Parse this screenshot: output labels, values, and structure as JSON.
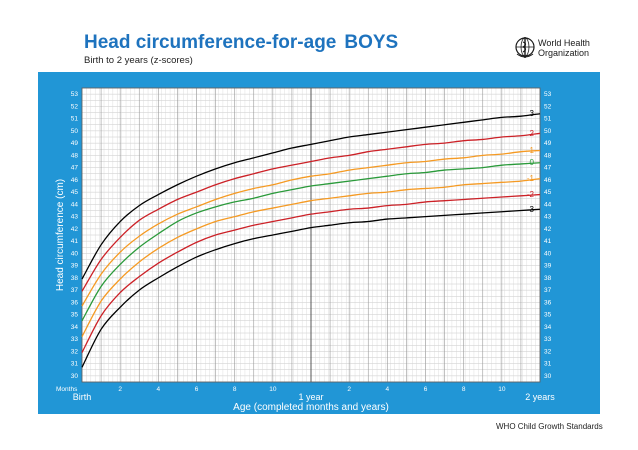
{
  "header": {
    "title": "Head circumference-for-age",
    "title_sex": "BOYS",
    "subtitle": "Birth to 2 years (z-scores)",
    "org_name_line1": "World Health",
    "org_name_line2": "Organization"
  },
  "footer": "WHO Child Growth Standards",
  "colors": {
    "panel": "#2196d6",
    "title": "#1e73be",
    "z_pm3": "#000000",
    "z_pm2": "#cc2127",
    "z_pm1": "#f59a23",
    "z_0": "#2a9a3a"
  },
  "chart_data": {
    "type": "line",
    "title": "Head circumference-for-age BOYS",
    "subtitle": "Birth to 2 years (z-scores)",
    "xlabel": "Age (completed months and years)",
    "ylabel": "Head circumference (cm)",
    "x_unit_label": "Months",
    "x_milestones": [
      {
        "month": 0,
        "label": "Birth"
      },
      {
        "month": 12,
        "label": "1 year"
      },
      {
        "month": 24,
        "label": "2 years"
      }
    ],
    "x_ticks": [
      {
        "month": 2,
        "label": "2"
      },
      {
        "month": 4,
        "label": "4"
      },
      {
        "month": 6,
        "label": "6"
      },
      {
        "month": 8,
        "label": "8"
      },
      {
        "month": 10,
        "label": "10"
      },
      {
        "month": 14,
        "label": "2"
      },
      {
        "month": 16,
        "label": "4"
      },
      {
        "month": 18,
        "label": "6"
      },
      {
        "month": 20,
        "label": "8"
      },
      {
        "month": 22,
        "label": "10"
      }
    ],
    "xlim": [
      0,
      24
    ],
    "ylim": [
      29.5,
      53.5
    ],
    "y_ticks": [
      30,
      31,
      32,
      33,
      34,
      35,
      36,
      37,
      38,
      39,
      40,
      41,
      42,
      43,
      44,
      45,
      46,
      47,
      48,
      49,
      50,
      51,
      52,
      53
    ],
    "grid": true,
    "x": [
      0,
      1,
      2,
      3,
      4,
      5,
      6,
      7,
      8,
      9,
      10,
      11,
      12,
      13,
      14,
      15,
      16,
      17,
      18,
      19,
      20,
      21,
      22,
      23,
      24
    ],
    "series": [
      {
        "name": "3",
        "color_key": "z_pm3",
        "values": [
          37.9,
          40.7,
          42.6,
          43.9,
          44.8,
          45.6,
          46.3,
          46.9,
          47.4,
          47.8,
          48.2,
          48.6,
          48.9,
          49.2,
          49.5,
          49.7,
          49.9,
          50.1,
          50.3,
          50.5,
          50.7,
          50.9,
          51.1,
          51.2,
          51.4
        ]
      },
      {
        "name": "2",
        "color_key": "z_pm2",
        "values": [
          36.9,
          39.5,
          41.3,
          42.7,
          43.6,
          44.4,
          45.0,
          45.6,
          46.1,
          46.5,
          46.9,
          47.2,
          47.5,
          47.8,
          48.0,
          48.3,
          48.5,
          48.7,
          48.9,
          49.0,
          49.2,
          49.3,
          49.5,
          49.6,
          49.8
        ]
      },
      {
        "name": "1",
        "color_key": "z_pm1",
        "values": [
          35.7,
          38.3,
          40.1,
          41.4,
          42.4,
          43.2,
          43.8,
          44.4,
          44.9,
          45.3,
          45.6,
          46.0,
          46.3,
          46.5,
          46.8,
          47.0,
          47.2,
          47.4,
          47.5,
          47.7,
          47.8,
          48.0,
          48.1,
          48.3,
          48.4
        ]
      },
      {
        "name": "0",
        "color_key": "z_0",
        "values": [
          34.5,
          37.3,
          39.1,
          40.5,
          41.6,
          42.6,
          43.3,
          43.8,
          44.2,
          44.5,
          44.9,
          45.2,
          45.5,
          45.7,
          45.9,
          46.1,
          46.3,
          46.5,
          46.6,
          46.8,
          46.9,
          47.0,
          47.2,
          47.3,
          47.4
        ]
      },
      {
        "name": "-1",
        "color_key": "z_pm1",
        "values": [
          33.2,
          36.1,
          37.9,
          39.3,
          40.4,
          41.3,
          42.0,
          42.6,
          43.0,
          43.4,
          43.7,
          44.0,
          44.3,
          44.5,
          44.7,
          44.9,
          45.0,
          45.2,
          45.3,
          45.4,
          45.6,
          45.7,
          45.8,
          45.9,
          46.1
        ]
      },
      {
        "name": "-2",
        "color_key": "z_pm2",
        "values": [
          31.9,
          34.9,
          36.8,
          38.1,
          39.2,
          40.1,
          40.9,
          41.5,
          41.9,
          42.3,
          42.6,
          42.9,
          43.2,
          43.4,
          43.6,
          43.7,
          43.9,
          44.0,
          44.2,
          44.3,
          44.4,
          44.5,
          44.6,
          44.7,
          44.8
        ]
      },
      {
        "name": "-3",
        "color_key": "z_pm3",
        "values": [
          30.7,
          33.8,
          35.6,
          37.0,
          38.0,
          38.9,
          39.7,
          40.3,
          40.8,
          41.2,
          41.5,
          41.8,
          42.1,
          42.3,
          42.5,
          42.6,
          42.8,
          42.9,
          43.0,
          43.1,
          43.2,
          43.3,
          43.4,
          43.5,
          43.6
        ]
      }
    ]
  }
}
